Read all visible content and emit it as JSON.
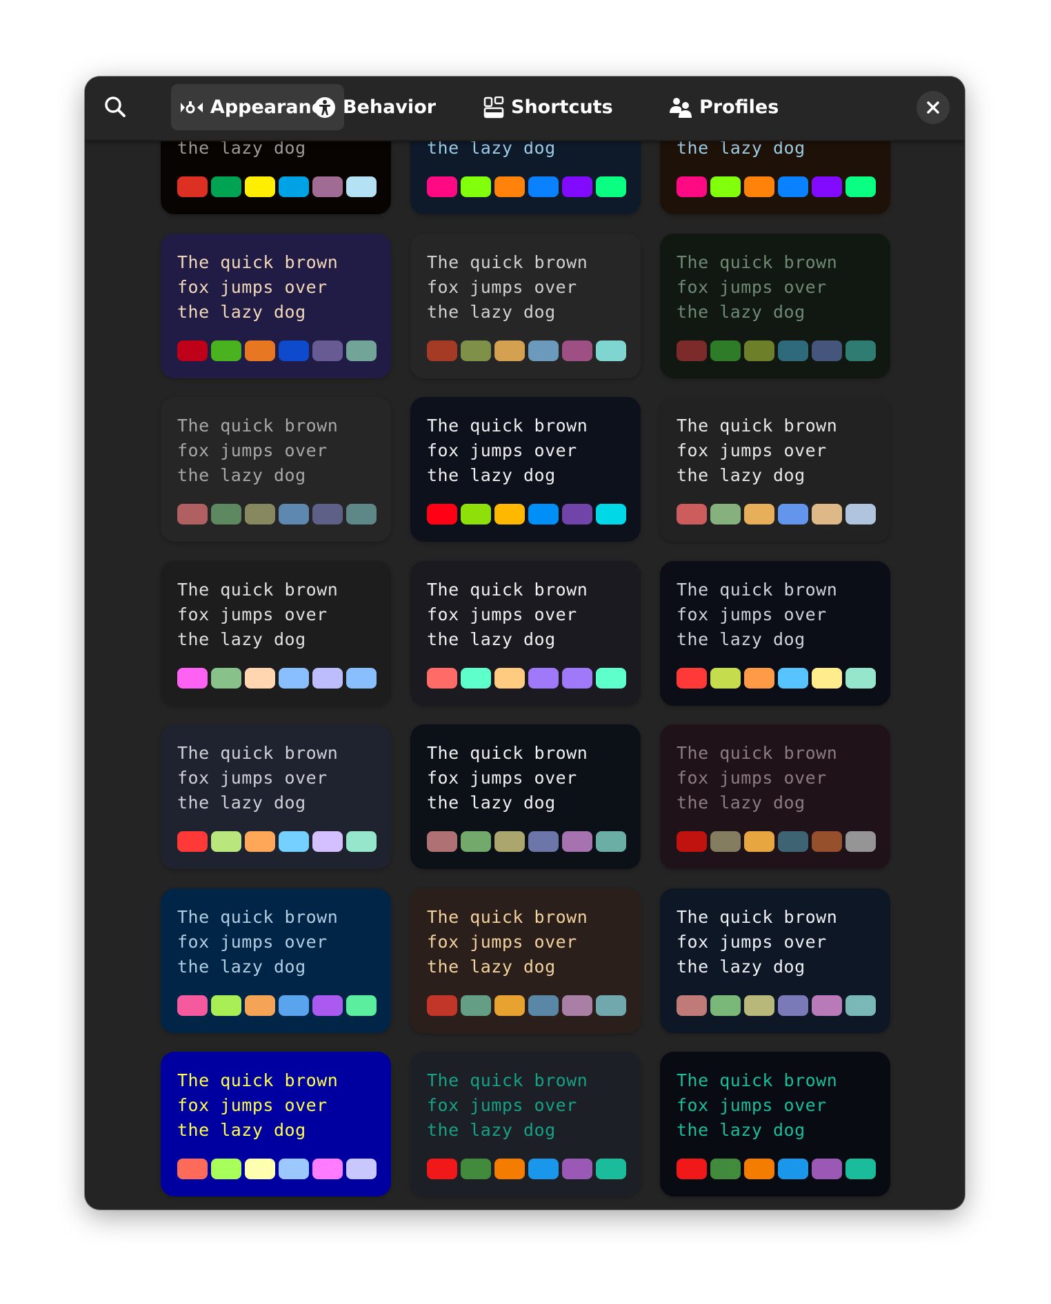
{
  "header": {
    "search_icon": "search-icon",
    "tabs": [
      {
        "label": "Appearance",
        "icon": "palette-icon",
        "active": true
      },
      {
        "label": "Behavior",
        "icon": "accessibility-icon",
        "active": false
      },
      {
        "label": "Shortcuts",
        "icon": "shortcuts-icon",
        "active": false
      },
      {
        "label": "Profiles",
        "icon": "users-icon",
        "active": false
      }
    ],
    "close_icon": "close-icon"
  },
  "preview_lines": [
    "The quick brown",
    "fox jumps over",
    "the lazy dog"
  ],
  "themes": [
    {
      "bg": "#080401",
      "fg": "#a09a96",
      "palette": [
        "#dc3023",
        "#00a351",
        "#ffee00",
        "#00a2e6",
        "#a06c94",
        "#b4e2f4"
      ]
    },
    {
      "bg": "#0e1a2a",
      "fg": "#9ccbe6",
      "palette": [
        "#ff0a82",
        "#82ff0a",
        "#ff820a",
        "#0a82ff",
        "#820aff",
        "#0aff82"
      ]
    },
    {
      "bg": "#1e1208",
      "fg": "#9ccbe6",
      "palette": [
        "#ff0a82",
        "#82ff0a",
        "#ff820a",
        "#0a82ff",
        "#820aff",
        "#0aff82"
      ]
    },
    {
      "bg": "#201c45",
      "fg": "#f3d9b8",
      "palette": [
        "#be0019",
        "#4ab11f",
        "#e87722",
        "#0e4bcc",
        "#685a92",
        "#72a598"
      ]
    },
    {
      "bg": "#262626",
      "fg": "#d0d0d0",
      "palette": [
        "#a63b25",
        "#7f9048",
        "#d4a150",
        "#6b9abc",
        "#9e4f84",
        "#7fd6d0"
      ]
    },
    {
      "bg": "#111711",
      "fg": "#6f8a74",
      "palette": [
        "#7c2a2a",
        "#2e7c27",
        "#6e7f2a",
        "#2e6a7c",
        "#45557c",
        "#2e7c72"
      ]
    },
    {
      "bg": "#262626",
      "fg": "#a8a8a8",
      "palette": [
        "#b06060",
        "#5e8860",
        "#888860",
        "#5e88b0",
        "#5e6088",
        "#5e8888"
      ]
    },
    {
      "bg": "#0d111b",
      "fg": "#f0f0f0",
      "palette": [
        "#ff0014",
        "#8fe00b",
        "#ffb800",
        "#008ef7",
        "#7044a8",
        "#00d8e8"
      ]
    },
    {
      "bg": "#222222",
      "fg": "#e8e8e8",
      "palette": [
        "#cd5c5c",
        "#87b07f",
        "#e8af5a",
        "#6495ed",
        "#deb887",
        "#b0c4de"
      ]
    },
    {
      "bg": "#1d1d1d",
      "fg": "#e0e0e0",
      "palette": [
        "#ff61f2",
        "#88c28a",
        "#ffd6b0",
        "#8abfff",
        "#bdbdfe",
        "#8abfff"
      ]
    },
    {
      "bg": "#1b1a20",
      "fg": "#f0f0f0",
      "palette": [
        "#ff6b66",
        "#5fffcc",
        "#ffcb80",
        "#a079fa",
        "#a079fa",
        "#5fffcc"
      ]
    },
    {
      "bg": "#0b0e17",
      "fg": "#cfd2d6",
      "palette": [
        "#ff3838",
        "#c5dd4c",
        "#ff9a46",
        "#57c4ff",
        "#ffec8c",
        "#95e6cb"
      ]
    },
    {
      "bg": "#1f2330",
      "fg": "#d0d0d6",
      "palette": [
        "#ff3838",
        "#bae67e",
        "#ffa759",
        "#73d0ff",
        "#d4bfff",
        "#95e6cb"
      ]
    },
    {
      "bg": "#0c1118",
      "fg": "#f0f0f0",
      "palette": [
        "#b07174",
        "#73aa6b",
        "#aba56e",
        "#6d76a8",
        "#a673b0",
        "#6aaea5"
      ]
    },
    {
      "bg": "#1f1219",
      "fg": "#8c7c80",
      "palette": [
        "#c0120f",
        "#857d5f",
        "#e8a640",
        "#3e6373",
        "#96512c",
        "#959595"
      ]
    },
    {
      "bg": "#012546",
      "fg": "#b3cde4",
      "palette": [
        "#f55a9e",
        "#aaee55",
        "#f5a455",
        "#5aa4ee",
        "#aa5aee",
        "#5aee9e"
      ]
    },
    {
      "bg": "#2b1f1c",
      "fg": "#f3d19c",
      "palette": [
        "#c13629",
        "#649e85",
        "#e7a22f",
        "#5b87a7",
        "#a97fa5",
        "#70a8ad"
      ]
    },
    {
      "bg": "#0d1726",
      "fg": "#eef0f4",
      "palette": [
        "#c07a78",
        "#7ab87a",
        "#b8b87a",
        "#7a7ab8",
        "#b87ab8",
        "#7ab8b8"
      ]
    },
    {
      "bg": "#0000a0",
      "fg": "#ffff4e",
      "palette": [
        "#ff6b5a",
        "#a8ff5a",
        "#ffffb0",
        "#9bc8ff",
        "#ff7bff",
        "#c8c8ff"
      ]
    },
    {
      "bg": "#1c2026",
      "fg": "#16a085",
      "palette": [
        "#f01818",
        "#428b3c",
        "#f47d00",
        "#1a96eb",
        "#9b59b6",
        "#1abc9c"
      ]
    },
    {
      "bg": "#080c12",
      "fg": "#1abc9c",
      "palette": [
        "#f01818",
        "#428b3c",
        "#f47d00",
        "#1a96eb",
        "#9b59b6",
        "#1abc9c"
      ]
    }
  ]
}
